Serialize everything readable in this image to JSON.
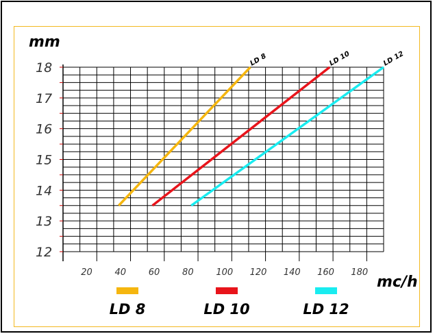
{
  "chart_data": {
    "type": "line",
    "xlabel": "mc/h",
    "ylabel": "mm",
    "xlim": [
      0,
      190
    ],
    "ylim": [
      12,
      18
    ],
    "x_ticks": [
      20,
      40,
      60,
      80,
      100,
      120,
      140,
      160,
      180
    ],
    "y_ticks": [
      12,
      13,
      14,
      15,
      16,
      17,
      18
    ],
    "series": [
      {
        "name": "LD 8",
        "color": "#f5b60f",
        "x": [
          33,
          111
        ],
        "y": [
          13.5,
          18
        ]
      },
      {
        "name": "LD 10",
        "color": "#e8141b",
        "x": [
          53,
          158
        ],
        "y": [
          13.5,
          18
        ]
      },
      {
        "name": "LD 12",
        "color": "#19ecf0",
        "x": [
          76,
          190
        ],
        "y": [
          13.5,
          18
        ]
      }
    ],
    "legend": [
      {
        "label": "LD 8",
        "color": "#f5b60f"
      },
      {
        "label": "LD 10",
        "color": "#e8141b"
      },
      {
        "label": "LD 12",
        "color": "#19ecf0"
      }
    ],
    "legend_position": "bottom"
  }
}
